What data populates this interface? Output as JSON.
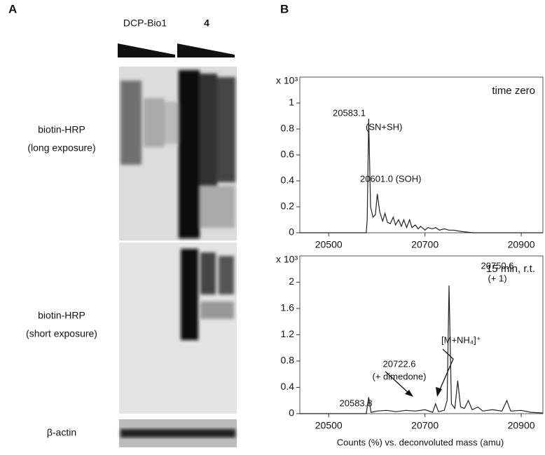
{
  "panel_a": {
    "label": "A",
    "lanes": [
      "DCP-Bio1",
      "4"
    ],
    "rows": [
      {
        "label_lines": [
          "biotin-HRP",
          "(long exposure)"
        ]
      },
      {
        "label_lines": [
          "biotin-HRP",
          "(short exposure)"
        ]
      },
      {
        "label_lines": [
          "β-actin"
        ]
      }
    ]
  },
  "panel_b_label": "B",
  "x_label": "Counts (%) vs. deconvoluted mass (amu)",
  "chart_data": [
    {
      "type": "line",
      "title": "time zero",
      "y_unit": "x 10³",
      "color": "#222222",
      "xlim": [
        20440,
        20945
      ],
      "xticks": [
        20500,
        20700,
        20900
      ],
      "ylim": [
        0,
        1.2
      ],
      "yticks": [
        0,
        0.2,
        0.4,
        0.6,
        0.8,
        1.0
      ],
      "x": [
        20440,
        20578,
        20580,
        20583,
        20587,
        20592,
        20597,
        20601,
        20606,
        20612,
        20617,
        20622,
        20628,
        20634,
        20639,
        20645,
        20651,
        20656,
        20662,
        20668,
        20673,
        20680,
        20686,
        20691,
        20700,
        20706,
        20715,
        20722,
        20730,
        20740,
        20750,
        20760,
        20775,
        20800,
        20945
      ],
      "values": [
        0,
        0,
        0.1,
        0.88,
        0.2,
        0.12,
        0.14,
        0.3,
        0.16,
        0.09,
        0.15,
        0.08,
        0.07,
        0.12,
        0.06,
        0.1,
        0.05,
        0.1,
        0.04,
        0.1,
        0.04,
        0.06,
        0.03,
        0.05,
        0.02,
        0.04,
        0.03,
        0.04,
        0.02,
        0.03,
        0.02,
        0.02,
        0.01,
        0,
        0
      ],
      "annotations": [
        "20583.1",
        "(SN+SH)",
        "20601.0  (SOH)"
      ]
    },
    {
      "type": "line",
      "title": "15 min, r.t.",
      "y_unit": "x 10³",
      "color": "#222222",
      "xlim": [
        20440,
        20945
      ],
      "xticks": [
        20500,
        20700,
        20900
      ],
      "ylim": [
        0,
        2.4
      ],
      "yticks": [
        0,
        0.4,
        0.8,
        1.2,
        1.6,
        2.0
      ],
      "x": [
        20440,
        20578,
        20583,
        20588,
        20600,
        20620,
        20640,
        20660,
        20680,
        20700,
        20716,
        20722,
        20728,
        20740,
        20746,
        20750,
        20755,
        20762,
        20768,
        20774,
        20782,
        20790,
        20798,
        20810,
        20820,
        20840,
        20860,
        20870,
        20878,
        20900,
        20920,
        20945
      ],
      "values": [
        0,
        0,
        0.25,
        0.02,
        0.04,
        0.05,
        0.03,
        0.05,
        0.04,
        0.06,
        0.02,
        0.15,
        0.03,
        0.05,
        0.2,
        1.95,
        0.15,
        0.08,
        0.5,
        0.1,
        0.08,
        0.2,
        0.06,
        0.1,
        0.04,
        0.06,
        0.04,
        0.2,
        0.04,
        0.05,
        0.02,
        0.01
      ],
      "annotations": [
        "20750.6",
        "(+ 1)",
        "[M+NH₄]⁺",
        "20722.6",
        "(+ dimedone)",
        "20583.8"
      ]
    }
  ]
}
